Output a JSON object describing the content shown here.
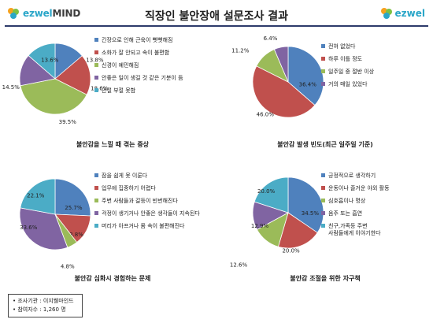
{
  "header": {
    "logo_left_text": "ezwel",
    "logo_left_suffix": "MIND",
    "logo_right_text": "ezwel",
    "title": "직장인 불안장애 설문조사 결과"
  },
  "chart_data": [
    {
      "type": "pie",
      "title": "불안감을 느낄 때 겪는 증상",
      "categories": [
        "긴장으로 인해 근육이 뻣뻣해짐",
        "소화가 잘 안되고 속이 불편함",
        "신경이 예민해짐",
        "안좋은 일이 생길 것 같은 기분이 듬",
        "안절 부절 못함"
      ],
      "values": [
        13.8,
        18.6,
        39.5,
        14.5,
        13.6
      ],
      "labels": [
        "13.8%",
        "18.6%",
        "39.5%",
        "14.5%",
        "13.6%"
      ],
      "colors": [
        "#4f81bd",
        "#c0504d",
        "#9bbb59",
        "#8064a2",
        "#4bacc6"
      ],
      "legend_position": "right"
    },
    {
      "type": "pie",
      "title": "불안감 발생 빈도(최근 일주일 기준)",
      "categories": [
        "전혀 없었다",
        "하루 이틀 정도",
        "일주일 중 절반 이상",
        "거의 매일 있었다"
      ],
      "values": [
        36.4,
        46.0,
        11.2,
        6.4
      ],
      "labels": [
        "36.4%",
        "46.0%",
        "11.2%",
        "6.4%"
      ],
      "colors": [
        "#4f81bd",
        "#c0504d",
        "#9bbb59",
        "#8064a2"
      ],
      "legend_position": "right"
    },
    {
      "type": "pie",
      "title": "불안감 심화시 경험하는 문제",
      "categories": [
        "잠을 쉽게 못 이룬다",
        "업무에 집중하기 어렵다",
        "주변 사람들과 갈등이 빈번해진다",
        "걱정이 생기거나 안좋은 생각들이 지속된다",
        "머리가 아프거나 몸 속이 불편해진다"
      ],
      "values": [
        25.7,
        13.8,
        4.8,
        33.6,
        22.1
      ],
      "labels": [
        "25.7%",
        "13.8%",
        "4.8%",
        "33.6%",
        "22.1%"
      ],
      "colors": [
        "#4f81bd",
        "#c0504d",
        "#9bbb59",
        "#8064a2",
        "#4bacc6"
      ],
      "legend_position": "right"
    },
    {
      "type": "pie",
      "title": "불안감 조절을 위한 자구책",
      "categories": [
        "긍정적으로 생각하기",
        "운동이나 즐거운 야외 활동",
        "심호흡이나 명상",
        "음주 또는 흡연",
        "친구,가족등 주변 사람들에게 이야기한다"
      ],
      "values": [
        34.5,
        20.0,
        12.6,
        12.9,
        20.0
      ],
      "labels": [
        "34.5%",
        "20.0%",
        "12.6%",
        "12.9%",
        "20.0%"
      ],
      "colors": [
        "#4f81bd",
        "#c0504d",
        "#9bbb59",
        "#8064a2",
        "#4bacc6"
      ],
      "legend_position": "right"
    }
  ],
  "footer": {
    "items": [
      "조사기관 : 이지웰마인드",
      "참여자수 : 1,260 명"
    ]
  }
}
